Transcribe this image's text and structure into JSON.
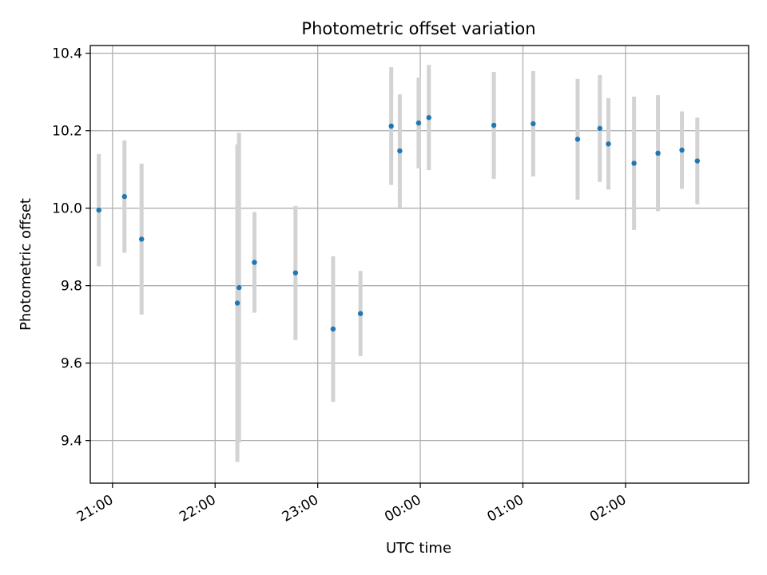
{
  "chart_data": {
    "type": "scatter",
    "title": "Photometric offset variation",
    "xlabel": "UTC time",
    "ylabel": "Photometric offset",
    "grid": true,
    "x_is_time": true,
    "x_unit": "UTC hh:mm (hours past 24 continue after midnight)",
    "xlim": [
      "20:47",
      "27:12"
    ],
    "ylim": [
      9.29,
      10.42
    ],
    "x_ticks": [
      "21:00",
      "22:00",
      "23:00",
      "00:00",
      "01:00",
      "02:00"
    ],
    "y_ticks": [
      "9.4",
      "9.6",
      "9.8",
      "10.0",
      "10.2",
      "10.4"
    ],
    "colors": {
      "point": "#1f77b4",
      "errorbar": "#d3d3d3",
      "grid": "#b0b0b0"
    },
    "points": [
      {
        "x": "20:52",
        "y": 9.995,
        "ylow": 9.85,
        "yhigh": 10.14
      },
      {
        "x": "21:07",
        "y": 10.03,
        "ylow": 9.885,
        "yhigh": 10.175
      },
      {
        "x": "21:17",
        "y": 9.92,
        "ylow": 9.725,
        "yhigh": 10.115
      },
      {
        "x": "22:13",
        "y": 9.755,
        "ylow": 9.345,
        "yhigh": 10.165
      },
      {
        "x": "22:14",
        "y": 9.795,
        "ylow": 9.395,
        "yhigh": 10.195
      },
      {
        "x": "22:23",
        "y": 9.86,
        "ylow": 9.73,
        "yhigh": 9.99
      },
      {
        "x": "22:47",
        "y": 9.833,
        "ylow": 9.66,
        "yhigh": 10.006
      },
      {
        "x": "23:09",
        "y": 9.688,
        "ylow": 9.5,
        "yhigh": 9.876
      },
      {
        "x": "23:25",
        "y": 9.728,
        "ylow": 9.618,
        "yhigh": 9.838
      },
      {
        "x": "23:43",
        "y": 10.212,
        "ylow": 10.06,
        "yhigh": 10.364
      },
      {
        "x": "23:48",
        "y": 10.148,
        "ylow": 10.002,
        "yhigh": 10.294
      },
      {
        "x": "23:59",
        "y": 10.22,
        "ylow": 10.103,
        "yhigh": 10.337
      },
      {
        "x": "24:05",
        "y": 10.234,
        "ylow": 10.098,
        "yhigh": 10.37
      },
      {
        "x": "24:43",
        "y": 10.214,
        "ylow": 10.076,
        "yhigh": 10.352
      },
      {
        "x": "25:06",
        "y": 10.218,
        "ylow": 10.082,
        "yhigh": 10.354
      },
      {
        "x": "25:32",
        "y": 10.178,
        "ylow": 10.022,
        "yhigh": 10.334
      },
      {
        "x": "25:45",
        "y": 10.206,
        "ylow": 10.068,
        "yhigh": 10.344
      },
      {
        "x": "25:50",
        "y": 10.166,
        "ylow": 10.048,
        "yhigh": 10.284
      },
      {
        "x": "26:05",
        "y": 10.116,
        "ylow": 9.944,
        "yhigh": 10.288
      },
      {
        "x": "26:19",
        "y": 10.142,
        "ylow": 9.992,
        "yhigh": 10.292
      },
      {
        "x": "26:33",
        "y": 10.15,
        "ylow": 10.05,
        "yhigh": 10.25
      },
      {
        "x": "26:42",
        "y": 10.122,
        "ylow": 10.01,
        "yhigh": 10.234
      }
    ]
  }
}
